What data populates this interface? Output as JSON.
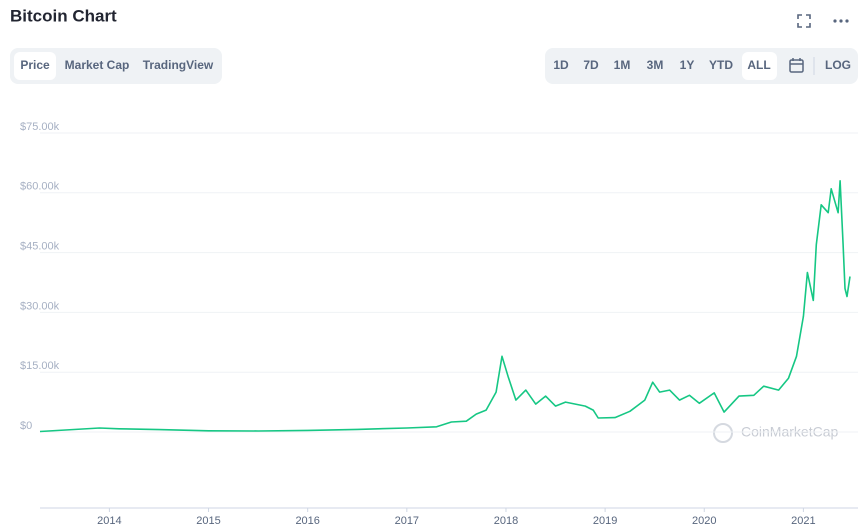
{
  "ui": {
    "title": "Bitcoin Chart",
    "tabs": [
      "Price",
      "Market Cap",
      "TradingView"
    ],
    "ranges": [
      "1D",
      "7D",
      "1M",
      "3M",
      "1Y",
      "YTD",
      "ALL"
    ],
    "log": "LOG",
    "watermark": "CoinMarketCap"
  },
  "chart_data": {
    "type": "line",
    "x": [
      2013.3,
      2013.9,
      2014.1,
      2014.5,
      2015.0,
      2015.5,
      2016.0,
      2016.5,
      2017.0,
      2017.3,
      2017.45,
      2017.6,
      2017.7,
      2017.8,
      2017.9,
      2017.96,
      2018.02,
      2018.1,
      2018.2,
      2018.3,
      2018.4,
      2018.5,
      2018.6,
      2018.8,
      2018.88,
      2018.93,
      2019.1,
      2019.25,
      2019.4,
      2019.48,
      2019.55,
      2019.65,
      2019.75,
      2019.85,
      2019.95,
      2020.1,
      2020.2,
      2020.35,
      2020.5,
      2020.6,
      2020.75,
      2020.85,
      2020.93,
      2021.0,
      2021.04,
      2021.1,
      2021.13,
      2021.18,
      2021.25,
      2021.28,
      2021.35,
      2021.37,
      2021.4,
      2021.42,
      2021.44,
      2021.47
    ],
    "series": [
      {
        "name": "Price",
        "color": "#16c784",
        "values": [
          120,
          1000,
          800,
          600,
          300,
          250,
          400,
          650,
          1000,
          1300,
          2500,
          2700,
          4500,
          5500,
          10000,
          19000,
          14000,
          8000,
          10500,
          7000,
          9000,
          6500,
          7500,
          6500,
          5500,
          3500,
          3600,
          5200,
          8000,
          12500,
          10000,
          10500,
          8000,
          9200,
          7200,
          9800,
          5000,
          9000,
          9200,
          11500,
          10500,
          13500,
          19000,
          29000,
          40000,
          33000,
          47000,
          57000,
          55000,
          61000,
          55000,
          63000,
          47000,
          36000,
          34000,
          39000
        ]
      }
    ],
    "xlim": [
      2013.3,
      2021.47
    ],
    "xticks": [
      2014,
      2015,
      2016,
      2017,
      2018,
      2019,
      2020,
      2021
    ],
    "ylim": [
      0,
      75000
    ],
    "yticks": [
      {
        "value": 0,
        "label": "$0"
      },
      {
        "value": 15000,
        "label": "$15.00k"
      },
      {
        "value": 30000,
        "label": "$30.00k"
      },
      {
        "value": 45000,
        "label": "$45.00k"
      },
      {
        "value": 60000,
        "label": "$60.00k"
      },
      {
        "value": 75000,
        "label": "$75.00k"
      }
    ],
    "grid": true
  }
}
